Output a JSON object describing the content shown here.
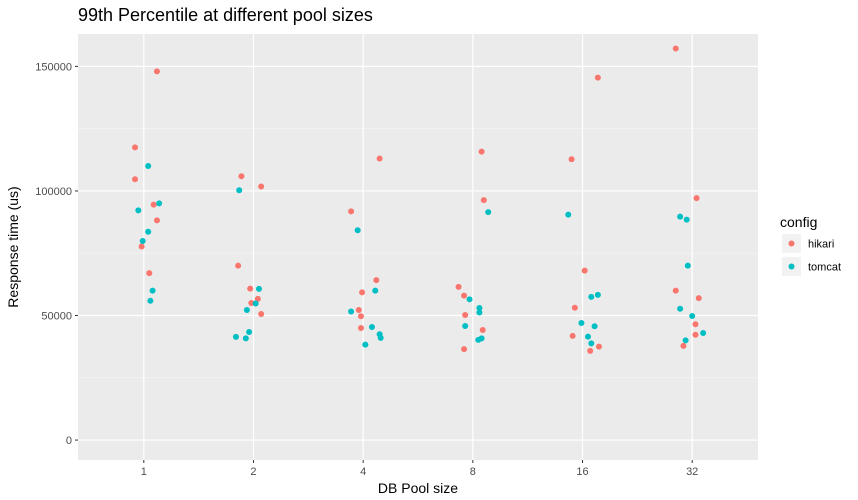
{
  "chart_data": {
    "type": "scatter",
    "title": "99th Percentile at different pool sizes",
    "xlabel": "DB Pool size",
    "ylabel": "Response time (us)",
    "categories": [
      "1",
      "2",
      "4",
      "8",
      "16",
      "32"
    ],
    "ylim": [
      -8000,
      163000
    ],
    "yticks": [
      0,
      50000,
      100000,
      150000
    ],
    "ytick_labels": [
      "0",
      "50000",
      "100000",
      "150000"
    ],
    "grid": true,
    "legend": {
      "title": "config",
      "position": "right"
    },
    "series": [
      {
        "name": "hikari",
        "color": "#F8766D",
        "points": [
          {
            "x": 0.92,
            "y": 117500
          },
          {
            "x": 0.92,
            "y": 104700
          },
          {
            "x": 1.09,
            "y": 94500
          },
          {
            "x": 1.12,
            "y": 88200
          },
          {
            "x": 0.98,
            "y": 77700
          },
          {
            "x": 1.05,
            "y": 67000
          },
          {
            "x": 1.12,
            "y": 148000
          },
          {
            "x": 1.89,
            "y": 105900
          },
          {
            "x": 2.07,
            "y": 101800
          },
          {
            "x": 1.86,
            "y": 70000
          },
          {
            "x": 1.97,
            "y": 60800
          },
          {
            "x": 1.98,
            "y": 55000
          },
          {
            "x": 2.04,
            "y": 56700
          },
          {
            "x": 2.07,
            "y": 50600
          },
          {
            "x": 3.15,
            "y": 113000
          },
          {
            "x": 2.89,
            "y": 91800
          },
          {
            "x": 3.12,
            "y": 64200
          },
          {
            "x": 2.99,
            "y": 59300
          },
          {
            "x": 2.96,
            "y": 52200
          },
          {
            "x": 2.98,
            "y": 49700
          },
          {
            "x": 2.98,
            "y": 45000
          },
          {
            "x": 4.08,
            "y": 115800
          },
          {
            "x": 4.1,
            "y": 96300
          },
          {
            "x": 3.87,
            "y": 61500
          },
          {
            "x": 3.92,
            "y": 58000
          },
          {
            "x": 3.93,
            "y": 50200
          },
          {
            "x": 4.09,
            "y": 44200
          },
          {
            "x": 3.92,
            "y": 36500
          },
          {
            "x": 4.9,
            "y": 112700
          },
          {
            "x": 5.14,
            "y": 145500
          },
          {
            "x": 5.02,
            "y": 68000
          },
          {
            "x": 4.93,
            "y": 53100
          },
          {
            "x": 4.91,
            "y": 41800
          },
          {
            "x": 5.15,
            "y": 37500
          },
          {
            "x": 5.07,
            "y": 35800
          },
          {
            "x": 5.85,
            "y": 157200
          },
          {
            "x": 6.04,
            "y": 97100
          },
          {
            "x": 5.85,
            "y": 60000
          },
          {
            "x": 6.06,
            "y": 57000
          },
          {
            "x": 6.03,
            "y": 46500
          },
          {
            "x": 6.03,
            "y": 42300
          },
          {
            "x": 5.92,
            "y": 37800
          }
        ]
      },
      {
        "name": "tomcat",
        "color": "#00BFC4",
        "points": [
          {
            "x": 1.04,
            "y": 110000
          },
          {
            "x": 1.14,
            "y": 95000
          },
          {
            "x": 0.95,
            "y": 92200
          },
          {
            "x": 1.04,
            "y": 83600
          },
          {
            "x": 0.99,
            "y": 79900
          },
          {
            "x": 1.08,
            "y": 60000
          },
          {
            "x": 1.06,
            "y": 55900
          },
          {
            "x": 1.87,
            "y": 100300
          },
          {
            "x": 2.05,
            "y": 60700
          },
          {
            "x": 2.02,
            "y": 54800
          },
          {
            "x": 1.94,
            "y": 52200
          },
          {
            "x": 1.96,
            "y": 43400
          },
          {
            "x": 1.84,
            "y": 41400
          },
          {
            "x": 1.93,
            "y": 40800
          },
          {
            "x": 2.95,
            "y": 84200
          },
          {
            "x": 3.11,
            "y": 60000
          },
          {
            "x": 2.89,
            "y": 51600
          },
          {
            "x": 3.08,
            "y": 45400
          },
          {
            "x": 3.15,
            "y": 42500
          },
          {
            "x": 3.16,
            "y": 41000
          },
          {
            "x": 3.02,
            "y": 38300
          },
          {
            "x": 4.14,
            "y": 91500
          },
          {
            "x": 3.97,
            "y": 56500
          },
          {
            "x": 4.06,
            "y": 53000
          },
          {
            "x": 4.06,
            "y": 51200
          },
          {
            "x": 3.93,
            "y": 45800
          },
          {
            "x": 4.08,
            "y": 40800
          },
          {
            "x": 4.05,
            "y": 40200
          },
          {
            "x": 4.87,
            "y": 90500
          },
          {
            "x": 5.14,
            "y": 58300
          },
          {
            "x": 5.08,
            "y": 57500
          },
          {
            "x": 4.99,
            "y": 47000
          },
          {
            "x": 5.11,
            "y": 45700
          },
          {
            "x": 5.05,
            "y": 41500
          },
          {
            "x": 5.08,
            "y": 38800
          },
          {
            "x": 5.89,
            "y": 89700
          },
          {
            "x": 5.95,
            "y": 88500
          },
          {
            "x": 5.96,
            "y": 70000
          },
          {
            "x": 5.89,
            "y": 52700
          },
          {
            "x": 6.0,
            "y": 49800
          },
          {
            "x": 6.1,
            "y": 43000
          },
          {
            "x": 5.94,
            "y": 40000
          }
        ]
      }
    ]
  }
}
